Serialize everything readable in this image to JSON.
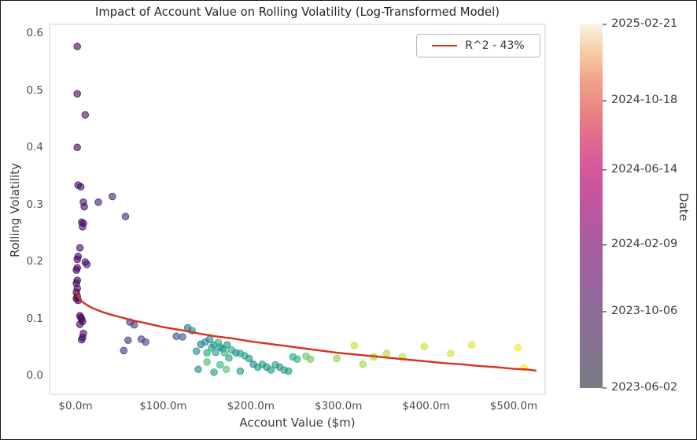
{
  "figure": {
    "title": "Impact of Account Value on Rolling Volatility (Log-Transformed Model)"
  },
  "chart_data": {
    "type": "scatter",
    "title": "Impact of Account Value on Rolling Volatility (Log-Transformed Model)",
    "xlabel": "Account Value ($m)",
    "ylabel": "Rolling Volatility",
    "xlim": [
      -30,
      536
    ],
    "ylim": [
      -0.032,
      0.617
    ],
    "grid": false,
    "x_ticks": {
      "values": [
        0,
        100,
        200,
        300,
        400,
        500
      ],
      "labels": [
        "$0.0m",
        "$100.0m",
        "$200.0m",
        "$300.0m",
        "$400.0m",
        "$500.0m"
      ]
    },
    "y_ticks": {
      "values": [
        0.0,
        0.1,
        0.2,
        0.3,
        0.4,
        0.5,
        0.6
      ],
      "labels": [
        "0.0",
        "0.1",
        "0.2",
        "0.3",
        "0.4",
        "0.5",
        "0.6"
      ]
    },
    "legend": {
      "position": "upper right",
      "entries": [
        {
          "label": "R^2 - 43%",
          "color": "#d7301f",
          "type": "line"
        }
      ]
    },
    "point_colormap_note": "points colored by Date, dark purple = 2023-06, yellow = 2025-02",
    "colormap_stops": [
      [
        0.0,
        "#440154"
      ],
      [
        0.13,
        "#471365"
      ],
      [
        0.25,
        "#46327e"
      ],
      [
        0.38,
        "#3b528b"
      ],
      [
        0.5,
        "#2c728e"
      ],
      [
        0.62,
        "#21918c"
      ],
      [
        0.72,
        "#27ad81"
      ],
      [
        0.82,
        "#5ec962"
      ],
      [
        0.92,
        "#aadc32"
      ],
      [
        1.0,
        "#fde725"
      ]
    ],
    "points": [
      [
        2,
        0.578,
        0.1
      ],
      [
        2,
        0.495,
        0.08
      ],
      [
        11,
        0.458,
        0.12
      ],
      [
        2,
        0.401,
        0.06
      ],
      [
        3,
        0.335,
        0.1
      ],
      [
        6,
        0.332,
        0.12
      ],
      [
        9,
        0.305,
        0.15
      ],
      [
        10,
        0.297,
        0.13
      ],
      [
        7,
        0.27,
        0.1
      ],
      [
        9,
        0.268,
        0.14
      ],
      [
        8,
        0.262,
        0.12
      ],
      [
        26,
        0.305,
        0.18
      ],
      [
        42,
        0.315,
        0.2
      ],
      [
        57,
        0.28,
        0.22
      ],
      [
        5,
        0.225,
        0.1
      ],
      [
        3,
        0.21,
        0.08
      ],
      [
        2,
        0.205,
        0.06
      ],
      [
        11,
        0.2,
        0.14
      ],
      [
        13,
        0.196,
        0.15
      ],
      [
        2,
        0.19,
        0.05
      ],
      [
        1,
        0.186,
        0.04
      ],
      [
        2,
        0.168,
        0.05
      ],
      [
        1,
        0.163,
        0.04
      ],
      [
        2,
        0.154,
        0.05
      ],
      [
        1,
        0.147,
        0.03
      ],
      [
        2,
        0.14,
        0.04
      ],
      [
        1,
        0.136,
        0.03
      ],
      [
        3,
        0.133,
        0.05
      ],
      [
        5,
        0.106,
        0.08
      ],
      [
        6,
        0.103,
        0.09
      ],
      [
        7,
        0.1,
        0.1
      ],
      [
        8,
        0.096,
        0.11
      ],
      [
        5,
        0.091,
        0.08
      ],
      [
        9,
        0.075,
        0.1
      ],
      [
        8,
        0.068,
        0.09
      ],
      [
        7,
        0.064,
        0.09
      ],
      [
        62,
        0.095,
        0.28
      ],
      [
        67,
        0.09,
        0.3
      ],
      [
        60,
        0.063,
        0.27
      ],
      [
        55,
        0.045,
        0.26
      ],
      [
        75,
        0.065,
        0.32
      ],
      [
        80,
        0.06,
        0.33
      ],
      [
        115,
        0.07,
        0.38
      ],
      [
        122,
        0.069,
        0.4
      ],
      [
        128,
        0.085,
        0.5
      ],
      [
        133,
        0.08,
        0.55
      ],
      [
        138,
        0.044,
        0.58
      ],
      [
        143,
        0.056,
        0.52
      ],
      [
        148,
        0.06,
        0.62
      ],
      [
        150,
        0.041,
        0.68
      ],
      [
        153,
        0.065,
        0.56
      ],
      [
        155,
        0.05,
        0.72
      ],
      [
        158,
        0.055,
        0.6
      ],
      [
        160,
        0.042,
        0.66
      ],
      [
        163,
        0.059,
        0.74
      ],
      [
        165,
        0.051,
        0.7
      ],
      [
        168,
        0.048,
        0.58
      ],
      [
        170,
        0.041,
        0.76
      ],
      [
        173,
        0.055,
        0.62
      ],
      [
        175,
        0.032,
        0.68
      ],
      [
        178,
        0.046,
        0.72
      ],
      [
        183,
        0.041,
        0.6
      ],
      [
        188,
        0.04,
        0.66
      ],
      [
        193,
        0.036,
        0.7
      ],
      [
        198,
        0.031,
        0.62
      ],
      [
        203,
        0.021,
        0.58
      ],
      [
        208,
        0.016,
        0.64
      ],
      [
        213,
        0.021,
        0.68
      ],
      [
        218,
        0.016,
        0.6
      ],
      [
        223,
        0.011,
        0.64
      ],
      [
        228,
        0.02,
        0.66
      ],
      [
        233,
        0.016,
        0.62
      ],
      [
        238,
        0.011,
        0.68
      ],
      [
        243,
        0.009,
        0.64
      ],
      [
        248,
        0.034,
        0.7
      ],
      [
        253,
        0.03,
        0.72
      ],
      [
        140,
        0.012,
        0.6
      ],
      [
        158,
        0.007,
        0.66
      ],
      [
        172,
        0.012,
        0.8
      ],
      [
        188,
        0.009,
        0.64
      ],
      [
        150,
        0.025,
        0.78
      ],
      [
        165,
        0.02,
        0.74
      ],
      [
        263,
        0.035,
        0.82
      ],
      [
        268,
        0.03,
        0.84
      ],
      [
        298,
        0.031,
        0.88
      ],
      [
        318,
        0.054,
        0.95
      ],
      [
        328,
        0.021,
        0.9
      ],
      [
        340,
        0.034,
        0.92
      ],
      [
        355,
        0.04,
        0.93
      ],
      [
        373,
        0.034,
        0.94
      ],
      [
        398,
        0.052,
        0.96
      ],
      [
        428,
        0.04,
        0.96
      ],
      [
        452,
        0.055,
        0.97
      ],
      [
        505,
        0.05,
        0.99
      ],
      [
        512,
        0.015,
        1.0
      ]
    ],
    "trend": {
      "label": "R^2 - 43%",
      "color": "#d7301f",
      "points": [
        [
          1,
          0.148
        ],
        [
          3,
          0.139
        ],
        [
          6,
          0.133
        ],
        [
          10,
          0.128
        ],
        [
          15,
          0.123
        ],
        [
          20,
          0.119
        ],
        [
          30,
          0.113
        ],
        [
          40,
          0.108
        ],
        [
          50,
          0.104
        ],
        [
          65,
          0.098
        ],
        [
          80,
          0.093
        ],
        [
          100,
          0.086
        ],
        [
          120,
          0.081
        ],
        [
          140,
          0.075
        ],
        [
          160,
          0.07
        ],
        [
          180,
          0.066
        ],
        [
          200,
          0.061
        ],
        [
          220,
          0.057
        ],
        [
          240,
          0.053
        ],
        [
          260,
          0.049
        ],
        [
          280,
          0.045
        ],
        [
          300,
          0.041
        ],
        [
          320,
          0.038
        ],
        [
          340,
          0.035
        ],
        [
          360,
          0.032
        ],
        [
          380,
          0.029
        ],
        [
          400,
          0.026
        ],
        [
          420,
          0.023
        ],
        [
          440,
          0.021
        ],
        [
          460,
          0.018
        ],
        [
          480,
          0.016
        ],
        [
          500,
          0.013
        ],
        [
          515,
          0.012
        ],
        [
          525,
          0.01
        ]
      ]
    },
    "colorbar": {
      "label": "Date",
      "ticks": [
        {
          "label": "2025-02-21",
          "frac_from_top": 0.0
        },
        {
          "label": "2024-10-18",
          "frac_from_top": 0.21
        },
        {
          "label": "2024-06-14",
          "frac_from_top": 0.4
        },
        {
          "label": "2024-02-09",
          "frac_from_top": 0.606
        },
        {
          "label": "2023-10-06",
          "frac_from_top": 0.79
        },
        {
          "label": "2023-06-02",
          "frac_from_top": 1.0
        }
      ],
      "gradient_stops_bottom_to_top": [
        [
          0.0,
          "#7b7a85"
        ],
        [
          0.2,
          "#8b6d97"
        ],
        [
          0.4,
          "#a85da0"
        ],
        [
          0.55,
          "#c9549e"
        ],
        [
          0.65,
          "#dc6194"
        ],
        [
          0.75,
          "#e97f83"
        ],
        [
          0.85,
          "#f2a58a"
        ],
        [
          0.93,
          "#f8cfa7"
        ],
        [
          1.0,
          "#fbf2e3"
        ]
      ]
    }
  }
}
